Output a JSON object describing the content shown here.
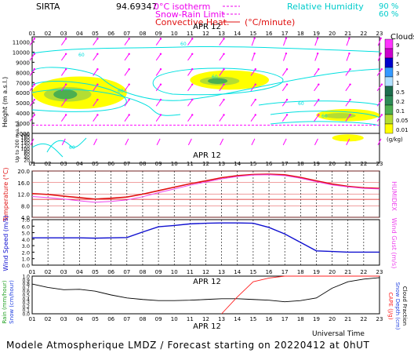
{
  "header": {
    "station": "SIRTA",
    "coords": "94.69347",
    "legend_isotherm": "0°C isotherm",
    "legend_snowrain": "Snow-Rain Limit",
    "legend_convective": "Convective Heat.",
    "legend_convective_unit": "(°C/minute)",
    "legend_rh": "Relative Humidity",
    "legend_rh_90": "90 %",
    "legend_rh_60": "60 %"
  },
  "footer": {
    "caption": "Modele Atmospherique LMDZ / Forecast starting on 20220412 at 0hUT",
    "universal_time": "Universal Time",
    "date_label": "APR 12"
  },
  "hours": [
    "01",
    "02",
    "03",
    "04",
    "05",
    "06",
    "07",
    "08",
    "09",
    "10",
    "11",
    "12",
    "13",
    "14",
    "15",
    "16",
    "17",
    "18",
    "19",
    "20",
    "21",
    "22",
    "23"
  ],
  "colors": {
    "cloud_scale": [
      "#ffff00",
      "#b4dd33",
      "#4caf50",
      "#2e8b57",
      "#1e6e4e",
      "#b0e0ff",
      "#3399ff",
      "#0000cc",
      "#cc00cc",
      "#ff33ff"
    ],
    "rh": "#00e0e0",
    "wind_arrow": "#ff00ff",
    "temp": "#e01010",
    "humidex": "#ee44ee",
    "wind": "#1010d0",
    "cloud_fraction": "#000000",
    "cape": "#ff2020"
  },
  "chart_data": [
    {
      "type": "heatmap",
      "panel": "clouds",
      "title": "Clouds",
      "unit": "(g/kg)",
      "ylabel": "Height (m a.s.l.)",
      "ylabel2": "Up to 200 m a.g.l.",
      "y_ticks_upper": [
        "11000",
        "10000",
        "9000",
        "8000",
        "7000",
        "6000",
        "5000",
        "4000",
        "3000",
        "2000"
      ],
      "y_ticks_lower": [
        "200",
        "180",
        "160",
        "140",
        "120",
        "100",
        "80",
        "60",
        "40",
        "20"
      ],
      "colorbar_labels": [
        "9",
        "7",
        "5",
        "3",
        "1",
        "0.5",
        "0.2",
        "0.1",
        "0.05",
        "0.01"
      ],
      "rh_contour_label": "60",
      "cloud_patches": [
        {
          "x_start": 1,
          "x_end": 7,
          "height_top": 7600,
          "height_bottom": 4400,
          "max_gkg": 0.2
        },
        {
          "x_start": 11,
          "x_end": 16,
          "height_top": 8200,
          "height_bottom": 6300,
          "max_gkg": 0.2
        },
        {
          "x_start": 19,
          "x_end": 23,
          "height_top": 4400,
          "height_bottom": 3200,
          "max_gkg": 0.1
        },
        {
          "x_start": 20,
          "x_end": 22,
          "height_top": 1900,
          "height_bottom": 1200,
          "max_gkg": 0.05
        }
      ],
      "isotherm_height": 2800
    },
    {
      "type": "line",
      "panel": "temperature",
      "ylabel": "Temperature (°C)",
      "ylabel_right": "HUMIDEX",
      "y_ticks": [
        "20.0",
        "16.0",
        "12.0",
        "8.0",
        "4.0"
      ],
      "ylim": [
        4,
        20
      ],
      "x": [
        1,
        2,
        3,
        4,
        5,
        6,
        7,
        8,
        9,
        10,
        11,
        12,
        13,
        14,
        15,
        16,
        17,
        18,
        19,
        20,
        21,
        22,
        23
      ],
      "series": [
        {
          "name": "Temperature",
          "values": [
            12.2,
            11.9,
            11.3,
            10.8,
            10.3,
            10.6,
            11.0,
            12.0,
            13.2,
            14.4,
            15.6,
            16.6,
            17.7,
            18.4,
            18.8,
            18.9,
            18.7,
            17.8,
            16.6,
            15.5,
            14.7,
            14.2,
            14.0
          ]
        },
        {
          "name": "Humidex",
          "values": [
            11.2,
            10.8,
            10.3,
            9.7,
            9.2,
            9.5,
            10.0,
            11.1,
            12.5,
            13.8,
            15.1,
            16.2,
            17.3,
            18.1,
            18.6,
            18.7,
            18.4,
            17.5,
            16.3,
            15.2,
            14.5,
            14.0,
            13.8
          ]
        }
      ],
      "ref_line": 10.2
    },
    {
      "type": "line",
      "panel": "wind",
      "ylabel": "Wind Speed (m/s)",
      "ylabel_right": "Wind Gust (m/s)",
      "y_ticks": [
        "7.0",
        "6.0",
        "5.0",
        "4.0",
        "3.0",
        "2.0",
        "1.0",
        "0.0"
      ],
      "ylim": [
        0,
        7
      ],
      "x": [
        1,
        2,
        3,
        4,
        5,
        6,
        7,
        8,
        9,
        10,
        11,
        12,
        13,
        14,
        15,
        16,
        17,
        18,
        19,
        20,
        21,
        22,
        23
      ],
      "series": [
        {
          "name": "Wind Speed",
          "values": [
            4.2,
            4.2,
            4.2,
            4.2,
            4.15,
            4.2,
            4.25,
            5.1,
            5.9,
            6.1,
            6.35,
            6.45,
            6.5,
            6.5,
            6.45,
            5.8,
            4.8,
            3.5,
            2.2,
            2.1,
            2.0,
            2.0,
            2.0
          ]
        }
      ]
    },
    {
      "type": "line",
      "panel": "rain_cloudfraction",
      "ylabel": "Rain (mm/hour)",
      "ylabel2": "Snow (cm/hour)",
      "ylabel_right": "CAPE (J/g)",
      "ylabel_right2": "Snow Depth (cm)",
      "ylabel_right3": "Cloud Fraction",
      "y_ticks": [
        "1.0",
        "0.9",
        "0.8",
        "0.7",
        "0.6",
        "0.5",
        "0.4",
        "0.3",
        "0.2",
        "0.1",
        "0.0"
      ],
      "ylim": [
        0,
        1
      ],
      "x": [
        1,
        2,
        3,
        4,
        5,
        6,
        7,
        8,
        9,
        10,
        11,
        12,
        13,
        14,
        15,
        16,
        17,
        18,
        19,
        20,
        21,
        22,
        23
      ],
      "series": [
        {
          "name": "Cloud Fraction",
          "values": [
            0.79,
            0.7,
            0.64,
            0.65,
            0.6,
            0.5,
            0.42,
            0.38,
            0.35,
            0.35,
            0.36,
            0.38,
            0.4,
            0.4,
            0.38,
            0.36,
            0.32,
            0.35,
            0.42,
            0.68,
            0.85,
            0.92,
            0.96
          ]
        },
        {
          "name": "CAPE",
          "values": [
            null,
            null,
            null,
            null,
            null,
            null,
            null,
            null,
            null,
            null,
            null,
            null,
            0.0,
            0.45,
            0.85,
            0.95,
            1.0,
            1.0,
            1.0,
            1.0,
            1.0,
            1.0,
            1.0
          ]
        }
      ]
    }
  ]
}
